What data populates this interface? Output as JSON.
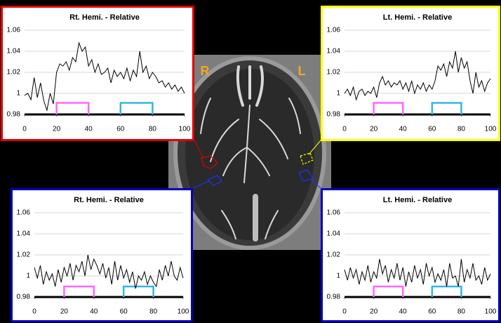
{
  "image": {
    "labels": [
      "R",
      "L"
    ]
  },
  "chart_data": [
    {
      "type": "line",
      "title": "Rt. Hemi. - Relative",
      "frame_color": "#e00000",
      "x": [
        0,
        2,
        4,
        6,
        8,
        10,
        12,
        14,
        16,
        18,
        20,
        22,
        24,
        26,
        28,
        30,
        32,
        34,
        36,
        38,
        40,
        42,
        44,
        46,
        48,
        50,
        52,
        54,
        56,
        58,
        60,
        62,
        64,
        66,
        68,
        70,
        72,
        74,
        76,
        78,
        80,
        82,
        84,
        86,
        88,
        90,
        92,
        94,
        96,
        98,
        100
      ],
      "series": [
        {
          "color": "#000000",
          "values": [
            0.998,
            1.0,
            0.994,
            1.015,
            0.996,
            1.01,
            0.993,
            0.984,
            1.0,
            0.99,
            1.02,
            1.028,
            1.026,
            1.03,
            1.022,
            1.034,
            1.03,
            1.048,
            1.04,
            1.044,
            1.026,
            1.032,
            1.02,
            1.028,
            1.018,
            1.02,
            1.024,
            1.01,
            1.022,
            1.016,
            1.02,
            1.014,
            1.024,
            1.012,
            1.022,
            1.016,
            1.04,
            1.02,
            1.026,
            1.014,
            1.02,
            1.016,
            1.01,
            1.012,
            1.006,
            1.01,
            1.004,
            1.008,
            1.002,
            1.006,
            1.0
          ]
        }
      ],
      "blocks": [
        {
          "x": [
            20,
            40
          ],
          "level": 0.991,
          "color": "#ff66ff"
        },
        {
          "x": [
            60,
            80
          ],
          "level": 0.991,
          "color": "#33b5e5"
        }
      ],
      "xlim": [
        0,
        100
      ],
      "xticks": [
        0,
        20,
        40,
        60,
        80,
        100
      ],
      "ylim": [
        0.98,
        1.06
      ],
      "yticks": [
        0.98,
        1,
        1.02,
        1.04,
        1.06
      ],
      "grid": true
    },
    {
      "type": "line",
      "title": "Lt. Hemi. - Relative",
      "frame_color": "#ffff00",
      "x": [
        0,
        2,
        4,
        6,
        8,
        10,
        12,
        14,
        16,
        18,
        20,
        22,
        24,
        26,
        28,
        30,
        32,
        34,
        36,
        38,
        40,
        42,
        44,
        46,
        48,
        50,
        52,
        54,
        56,
        58,
        60,
        62,
        64,
        66,
        68,
        70,
        72,
        74,
        76,
        78,
        80,
        82,
        84,
        86,
        88,
        90,
        92,
        94,
        96,
        98,
        100
      ],
      "series": [
        {
          "color": "#000000",
          "values": [
            1.0,
            1.004,
            0.998,
            1.006,
            0.994,
            1.002,
            1.004,
            0.998,
            1.002,
            1.0,
            1.006,
            0.996,
            1.01,
            1.016,
            1.008,
            1.012,
            1.006,
            1.01,
            1.008,
            1.012,
            1.004,
            1.01,
            1.002,
            1.012,
            1.0,
            1.008,
            1.004,
            1.01,
            1.002,
            1.008,
            1.004,
            1.012,
            1.026,
            1.022,
            1.028,
            1.016,
            1.03,
            1.024,
            1.04,
            1.02,
            1.034,
            1.024,
            1.03,
            1.012,
            1.0,
            1.02,
            1.006,
            1.012,
            1.002,
            1.01,
            1.014
          ]
        }
      ],
      "blocks": [
        {
          "x": [
            20,
            40
          ],
          "level": 0.991,
          "color": "#ff66ff"
        },
        {
          "x": [
            60,
            80
          ],
          "level": 0.991,
          "color": "#33b5e5"
        }
      ],
      "xlim": [
        0,
        100
      ],
      "xticks": [
        0,
        20,
        40,
        60,
        80,
        100
      ],
      "ylim": [
        0.98,
        1.06
      ],
      "yticks": [
        0.98,
        1,
        1.02,
        1.04,
        1.06
      ],
      "grid": true
    },
    {
      "type": "line",
      "title": "Rt. Hemi. - Relative",
      "frame_color": "#0000c0",
      "x": [
        0,
        2,
        4,
        6,
        8,
        10,
        12,
        14,
        16,
        18,
        20,
        22,
        24,
        26,
        28,
        30,
        32,
        34,
        36,
        38,
        40,
        42,
        44,
        46,
        48,
        50,
        52,
        54,
        56,
        58,
        60,
        62,
        64,
        66,
        68,
        70,
        72,
        74,
        76,
        78,
        80,
        82,
        84,
        86,
        88,
        90,
        92,
        94,
        96,
        98,
        100
      ],
      "series": [
        {
          "color": "#000000",
          "values": [
            1.008,
            0.998,
            1.01,
            0.992,
            1.004,
            0.996,
            1.002,
            0.99,
            1.006,
            0.994,
            1.008,
            1.0,
            1.012,
            0.996,
            1.01,
            1.004,
            1.014,
            1.0,
            1.02,
            1.006,
            1.016,
            1.01,
            1.002,
            1.012,
            0.998,
            1.008,
            0.992,
            1.014,
            0.996,
            1.01,
            0.998,
            1.006,
            0.994,
            1.004,
            0.988,
            1.0,
            0.996,
            1.004,
            0.992,
            1.0,
            0.994,
            0.99,
            1.006,
            0.996,
            1.01,
            1.0,
            1.014,
            1.0,
            0.996,
            1.008,
            0.998
          ]
        }
      ],
      "blocks": [
        {
          "x": [
            20,
            40
          ],
          "level": 0.99,
          "color": "#ff66ff"
        },
        {
          "x": [
            60,
            80
          ],
          "level": 0.99,
          "color": "#33b5e5"
        }
      ],
      "xlim": [
        0,
        100
      ],
      "xticks": [
        0,
        20,
        40,
        60,
        80,
        100
      ],
      "ylim": [
        0.98,
        1.06
      ],
      "yticks": [
        0.98,
        1,
        1.02,
        1.04,
        1.06
      ],
      "grid": true
    },
    {
      "type": "line",
      "title": "Lt. Hemi. - Relative",
      "frame_color": "#0000c0",
      "x": [
        0,
        2,
        4,
        6,
        8,
        10,
        12,
        14,
        16,
        18,
        20,
        22,
        24,
        26,
        28,
        30,
        32,
        34,
        36,
        38,
        40,
        42,
        44,
        46,
        48,
        50,
        52,
        54,
        56,
        58,
        60,
        62,
        64,
        66,
        68,
        70,
        72,
        74,
        76,
        78,
        80,
        82,
        84,
        86,
        88,
        90,
        92,
        94,
        96,
        98,
        100
      ],
      "series": [
        {
          "color": "#000000",
          "values": [
            1.006,
            0.996,
            1.008,
            0.998,
            1.006,
            0.992,
            1.004,
            0.996,
            1.01,
            0.994,
            1.004,
            0.998,
            1.016,
            1.002,
            1.01,
            0.994,
            1.006,
            0.998,
            1.012,
            0.996,
            1.008,
            0.99,
            1.004,
            0.994,
            1.01,
            0.998,
            1.006,
            0.992,
            1.012,
            1.0,
            1.008,
            0.994,
            1.002,
            0.996,
            1.006,
            0.99,
            1.012,
            0.998,
            1.0,
            0.99,
            1.016,
            0.994,
            1.006,
            0.998,
            1.012,
            0.996,
            1.0,
            0.992,
            1.008,
            0.996,
            1.002
          ]
        }
      ],
      "blocks": [
        {
          "x": [
            20,
            40
          ],
          "level": 0.99,
          "color": "#ff66ff"
        },
        {
          "x": [
            60,
            80
          ],
          "level": 0.99,
          "color": "#33b5e5"
        }
      ],
      "xlim": [
        0,
        100
      ],
      "xticks": [
        0,
        20,
        40,
        60,
        80,
        100
      ],
      "ylim": [
        0.98,
        1.06
      ],
      "yticks": [
        0.98,
        1,
        1.02,
        1.04,
        1.06
      ],
      "grid": true
    }
  ]
}
